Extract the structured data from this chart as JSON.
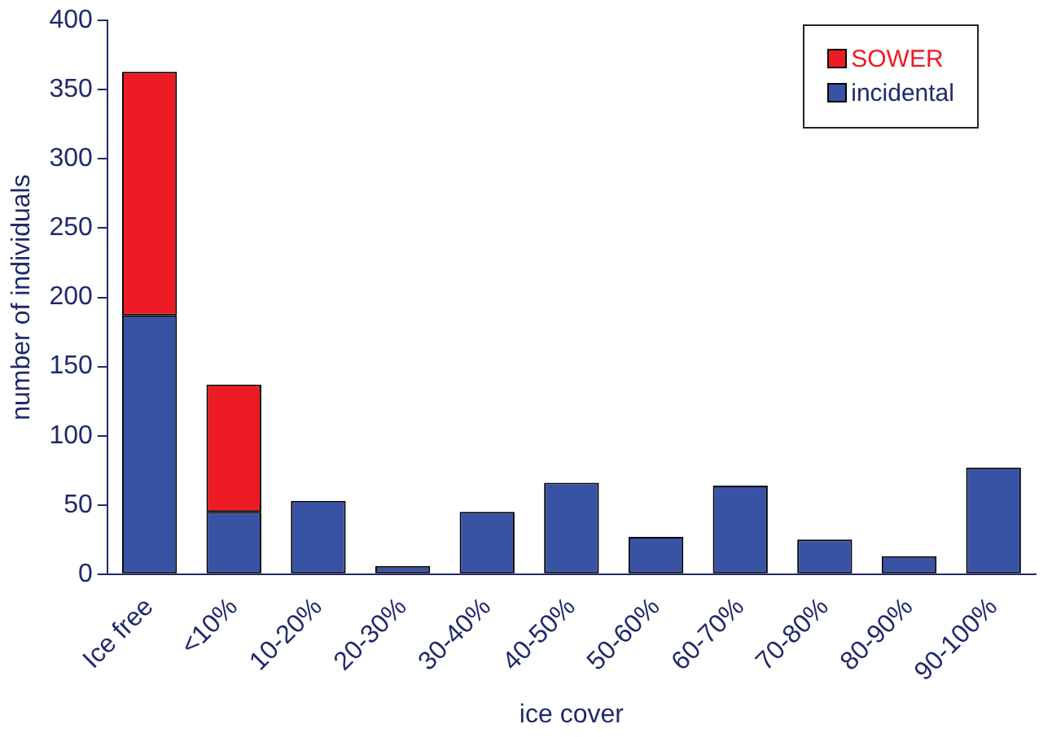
{
  "chart_data": {
    "type": "bar",
    "stacked": true,
    "xlabel": "ice cover",
    "ylabel": "number of individuals",
    "categories": [
      "Ice free",
      "<10%",
      "10-20%",
      "20-30%",
      "30-40%",
      "40-50%",
      "50-60%",
      "60-70%",
      "70-80%",
      "80-90%",
      "90-100%"
    ],
    "series": [
      {
        "name": "incidental",
        "color": "#3953a4",
        "values": [
          187,
          45,
          53,
          6,
          45,
          66,
          27,
          64,
          25,
          13,
          77
        ]
      },
      {
        "name": "SOWER",
        "color": "#ed1c24",
        "values": [
          176,
          92,
          0,
          0,
          0,
          0,
          0,
          0,
          0,
          0,
          0
        ]
      }
    ],
    "ylim": [
      0,
      400
    ],
    "yticks": [
      0,
      50,
      100,
      150,
      200,
      250,
      300,
      350,
      400
    ],
    "grid": false,
    "legend": "top right"
  }
}
